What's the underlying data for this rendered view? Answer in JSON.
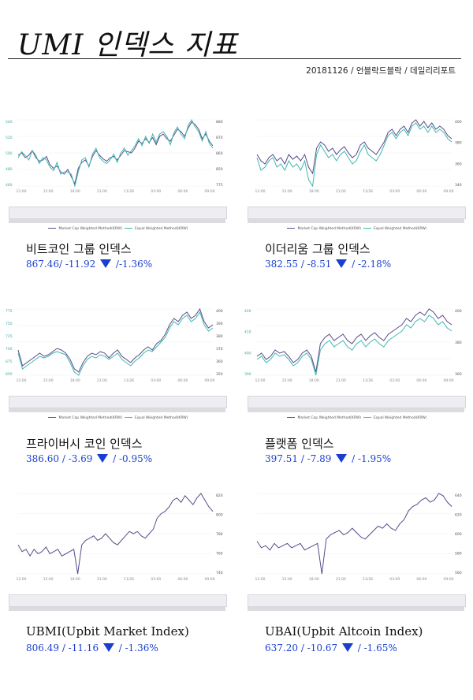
{
  "page": {
    "title": "UMI 인덱스 지표",
    "date": "20181126",
    "sep": "/",
    "source": "언블락드블락",
    "section": "데일리리포트"
  },
  "legend": {
    "series_a": "Market Cap Weighted Method(KRW)",
    "series_b": "Equal Weighted Method(KRW)",
    "color_a": "#5a4a8a",
    "color_b": "#3fb8b0"
  },
  "panels": [
    {
      "name": "비트코인 그룹 인덱스",
      "value": "867.46/",
      "change": "-11.92",
      "pct": "/-1.36%",
      "x_ticks": [
        "12:00",
        "15:00",
        "18:00",
        "21:00",
        "11/26",
        "03:00",
        "06:00",
        "09:00"
      ],
      "left_ticks": [
        "540",
        "520",
        "500",
        "480",
        "460"
      ],
      "right_ticks": [
        "880",
        "870",
        "860",
        "850",
        "775"
      ]
    },
    {
      "name": "이더리움 그룹 인덱스",
      "value": "382.55",
      "change": "/ -8.51",
      "pct": "/ -2.18%",
      "x_ticks": [
        "12:00",
        "15:00",
        "18:00",
        "21:00",
        "11/26",
        "03:00",
        "06:00",
        "09:00"
      ],
      "left_ticks": [],
      "right_ticks": [
        "400",
        "380",
        "360",
        "340"
      ]
    },
    {
      "name": "프라이버시 코인 인덱스",
      "value": "386.60",
      "change": "/ -3.69",
      "pct": "/ -0.95%",
      "x_ticks": [
        "12:00",
        "15:00",
        "18:00",
        "21:00",
        "11/26",
        "03:00",
        "06:00",
        "09:00"
      ],
      "left_ticks": [
        "775",
        "750",
        "725",
        "700",
        "675",
        "650"
      ],
      "right_ticks": [
        "400",
        "390",
        "380",
        "370",
        "360",
        "350"
      ]
    },
    {
      "name": "플랫폼 인덱스",
      "value": "397.51",
      "change": "/ -7.89",
      "pct": "/ -1.95%",
      "x_ticks": [
        "12:00",
        "15:00",
        "18:00",
        "21:00",
        "11/26",
        "03:00",
        "06:00",
        "09:00"
      ],
      "left_ticks": [
        "420",
        "410",
        "400",
        "390"
      ],
      "right_ticks": [
        "400",
        "380",
        "360"
      ]
    },
    {
      "name": "UBMI(Upbit Market Index)",
      "value": "806.49",
      "change": "/ -11.16",
      "pct": "/ -1.36%",
      "x_ticks": [
        "12:00",
        "15:00",
        "18:00",
        "21:00",
        "11/26",
        "03:00",
        "06:00",
        "09:00"
      ],
      "left_ticks": [],
      "right_ticks": [
        "820",
        "800",
        "780",
        "760",
        "740"
      ]
    },
    {
      "name": "UBAI(Upbit Altcoin Index)",
      "value": "637.20",
      "change": "/ -10.67",
      "pct": "/ -1.65%",
      "x_ticks": [
        "12:00",
        "15:00",
        "18:00",
        "21:00",
        "11/26",
        "03:00",
        "06:00",
        "09:00"
      ],
      "left_ticks": [],
      "right_ticks": [
        "640",
        "620",
        "600",
        "580",
        "560"
      ]
    }
  ],
  "chart_data": [
    {
      "type": "line",
      "series": [
        {
          "name": "Market Cap Weighted Method(KRW)",
          "values": [
            862,
            864,
            860,
            862,
            866,
            860,
            857,
            858,
            861,
            854,
            851,
            853,
            848,
            846,
            850,
            844,
            838,
            851,
            856,
            858,
            853,
            861,
            866,
            862,
            859,
            857,
            860,
            861,
            858,
            862,
            866,
            865,
            864,
            868,
            874,
            872,
            876,
            873,
            877,
            871,
            878,
            880,
            876,
            874,
            879,
            884,
            882,
            878,
            885,
            890,
            888,
            884,
            876,
            880,
            874,
            870
          ]
        },
        {
          "name": "Equal Weighted Method(KRW)",
          "values": [
            860,
            865,
            862,
            858,
            866,
            862,
            855,
            860,
            858,
            852,
            849,
            856,
            846,
            848,
            848,
            846,
            836,
            848,
            858,
            860,
            852,
            863,
            868,
            860,
            857,
            855,
            858,
            863,
            856,
            864,
            868,
            862,
            866,
            870,
            876,
            870,
            878,
            872,
            880,
            873,
            880,
            882,
            878,
            871,
            881,
            886,
            880,
            876,
            887,
            892,
            886,
            882,
            874,
            882,
            872,
            868
          ]
        }
      ]
    },
    {
      "type": "line",
      "series": [
        {
          "name": "Market Cap Weighted Method(KRW)",
          "values": [
            372,
            368,
            366,
            370,
            372,
            368,
            370,
            366,
            372,
            369,
            371,
            368,
            372,
            364,
            360,
            376,
            380,
            378,
            374,
            376,
            372,
            375,
            377,
            373,
            370,
            372,
            378,
            380,
            376,
            374,
            372,
            376,
            380,
            386,
            388,
            384,
            388,
            390,
            386,
            392,
            394,
            390,
            393,
            389,
            392,
            388,
            390,
            388,
            384,
            382
          ]
        },
        {
          "name": "Equal Weighted Method(KRW)",
          "values": [
            370,
            362,
            364,
            368,
            370,
            364,
            366,
            362,
            368,
            364,
            366,
            362,
            368,
            356,
            352,
            372,
            378,
            374,
            370,
            372,
            368,
            372,
            374,
            370,
            366,
            368,
            374,
            378,
            372,
            370,
            368,
            372,
            378,
            384,
            386,
            382,
            386,
            388,
            384,
            390,
            392,
            388,
            390,
            386,
            390,
            386,
            388,
            386,
            382,
            380
          ]
        }
      ]
    },
    {
      "type": "line",
      "series": [
        {
          "name": "Market Cap Weighted Method(KRW)",
          "values": [
            372,
            362,
            364,
            366,
            368,
            370,
            368,
            369,
            371,
            373,
            372,
            370,
            366,
            360,
            358,
            364,
            368,
            370,
            369,
            371,
            370,
            367,
            370,
            372,
            368,
            366,
            364,
            367,
            369,
            372,
            374,
            372,
            376,
            378,
            382,
            388,
            392,
            390,
            394,
            396,
            392,
            394,
            398,
            390,
            386,
            388
          ]
        },
        {
          "name": "Equal Weighted Method(KRW)",
          "values": [
            370,
            360,
            362,
            364,
            366,
            368,
            367,
            368,
            370,
            371,
            370,
            369,
            364,
            358,
            356,
            362,
            366,
            368,
            367,
            369,
            368,
            366,
            368,
            370,
            366,
            364,
            362,
            365,
            367,
            370,
            372,
            371,
            374,
            377,
            380,
            386,
            390,
            388,
            392,
            394,
            390,
            392,
            396,
            388,
            384,
            386
          ]
        }
      ]
    },
    {
      "type": "line",
      "series": [
        {
          "name": "Market Cap Weighted Method(KRW)",
          "values": [
            390,
            392,
            388,
            390,
            394,
            392,
            393,
            390,
            386,
            388,
            392,
            394,
            390,
            380,
            398,
            402,
            404,
            400,
            402,
            404,
            400,
            398,
            402,
            404,
            400,
            403,
            405,
            402,
            400,
            404,
            406,
            408,
            410,
            414,
            412,
            416,
            418,
            416,
            420,
            418,
            414,
            416,
            412,
            410
          ]
        },
        {
          "name": "Equal Weighted Method(KRW)",
          "values": [
            388,
            390,
            386,
            388,
            392,
            390,
            391,
            388,
            384,
            386,
            390,
            392,
            388,
            378,
            394,
            398,
            400,
            396,
            398,
            400,
            396,
            394,
            398,
            400,
            396,
            399,
            401,
            398,
            396,
            400,
            402,
            404,
            406,
            410,
            408,
            412,
            414,
            412,
            416,
            414,
            410,
            412,
            408,
            406
          ]
        }
      ]
    },
    {
      "type": "line",
      "series": [
        {
          "name": "Market Cap Weighted Method(KRW)",
          "values": [
            776,
            770,
            772,
            766,
            772,
            768,
            770,
            774,
            768,
            770,
            772,
            766,
            768,
            770,
            772,
            750,
            776,
            780,
            782,
            784,
            780,
            782,
            786,
            782,
            778,
            776,
            780,
            784,
            788,
            786,
            788,
            784,
            782,
            786,
            790,
            800,
            804,
            806,
            810,
            816,
            818,
            814,
            820,
            816,
            812,
            818,
            822,
            816,
            810,
            806
          ]
        }
      ]
    },
    {
      "type": "line",
      "series": [
        {
          "name": "Market Cap Weighted Method(KRW)",
          "values": [
            600,
            594,
            596,
            592,
            598,
            594,
            596,
            598,
            594,
            596,
            598,
            592,
            594,
            596,
            598,
            570,
            602,
            606,
            608,
            610,
            606,
            608,
            612,
            608,
            604,
            602,
            606,
            610,
            614,
            612,
            616,
            612,
            610,
            616,
            620,
            628,
            632,
            634,
            638,
            640,
            636,
            638,
            644,
            642,
            636,
            632
          ]
        }
      ]
    }
  ]
}
